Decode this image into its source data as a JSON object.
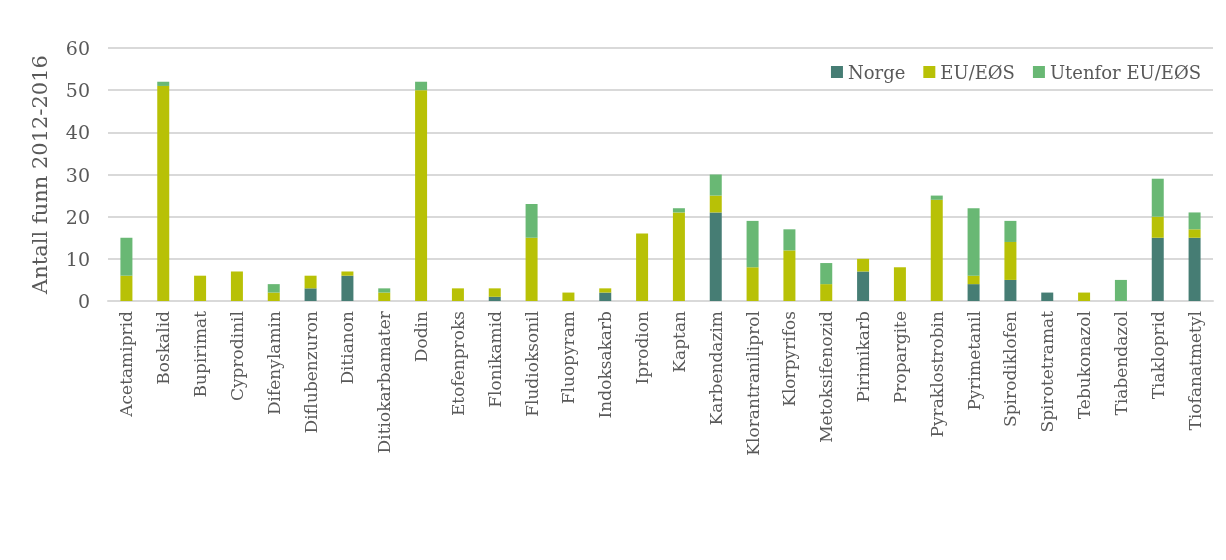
{
  "chart_data": {
    "type": "bar",
    "ylabel": "Antall funn 2012-2016",
    "categories": [
      "Acetamiprid",
      "Boskalid",
      "Bupirimat",
      "Cyprodinil",
      "Difenylamin",
      "Diflubenzuron",
      "Ditianon",
      "Ditiokarbamater",
      "Dodin",
      "Etofenproks",
      "Flonikamid",
      "Fludioksonil",
      "Fluopyram",
      "Indoksakarb",
      "Iprodion",
      "Kaptan",
      "Karbendazim",
      "Klorantraniliprol",
      "Klorpyrifos",
      "Metoksifenozid",
      "Pirimikarb",
      "Propargite",
      "Pyraklostrobin",
      "Pyrimetanil",
      "Spirodiklofen",
      "Spirotetramat",
      "Tebukonazol",
      "Tiabendazol",
      "Tiakloprid",
      "Tiofanatmetyl"
    ],
    "series": [
      {
        "name": "Norge",
        "color": "#467d74",
        "values": [
          0,
          0,
          0,
          0,
          0,
          3,
          6,
          0,
          0,
          0,
          1,
          0,
          0,
          2,
          0,
          0,
          21,
          0,
          0,
          0,
          7,
          0,
          0,
          4,
          5,
          2,
          0,
          0,
          15,
          15
        ]
      },
      {
        "name": "EU/EØS",
        "color": "#b8c106",
        "values": [
          6,
          51,
          6,
          7,
          2,
          3,
          1,
          2,
          50,
          3,
          2,
          15,
          2,
          1,
          16,
          21,
          4,
          8,
          12,
          4,
          3,
          8,
          24,
          2,
          9,
          0,
          2,
          0,
          5,
          2
        ]
      },
      {
        "name": "Utenfor EU/EØS",
        "color": "#69b874",
        "values": [
          9,
          1,
          0,
          0,
          2,
          0,
          0,
          1,
          2,
          0,
          0,
          8,
          0,
          0,
          0,
          1,
          5,
          11,
          5,
          5,
          0,
          0,
          1,
          16,
          5,
          0,
          0,
          5,
          9,
          4
        ]
      }
    ],
    "stacked": true,
    "ylim": [
      0,
      60
    ],
    "yticks": [
      0,
      10,
      20,
      30,
      40,
      50,
      60
    ],
    "grid": "y",
    "legend": "top right"
  }
}
